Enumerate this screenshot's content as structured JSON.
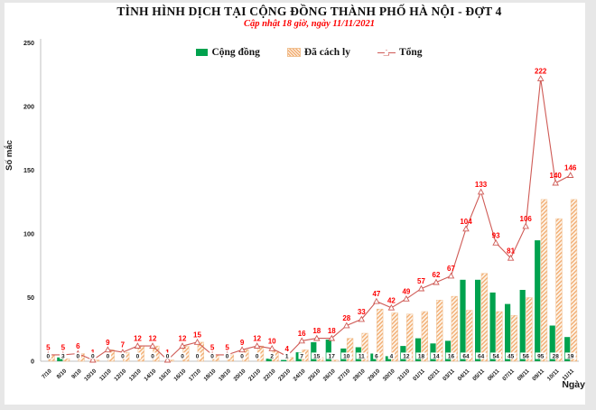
{
  "header": {
    "title": "TÌNH HÌNH DỊCH TẠI CỘNG ĐỒNG THÀNH PHỐ HÀ NỘI - ĐỢT 4",
    "subtitle": "Cập nhật 18 giờ, ngày 11/11/2021"
  },
  "legend": {
    "items": [
      {
        "label": "Cộng đồng",
        "swatch": "green-bar",
        "color": "#00A24E"
      },
      {
        "label": "Đã cách ly",
        "swatch": "orange-hatched-bar",
        "color": "#F2AE74"
      },
      {
        "label": "Tổng",
        "swatch": "red-line-triangle-marker",
        "color": "#CF5B56"
      }
    ]
  },
  "chart_data": {
    "type": "bar",
    "subtype": "clustered bars + line overlay",
    "title": "TÌNH HÌNH DỊCH TẠI CỘNG ĐỒNG THÀNH PHỐ HÀ NỘI - ĐỢT 4",
    "subtitle": "Cập nhật 18 giờ, ngày 11/11/2021",
    "xlabel": "Ngày",
    "ylabel": "Số mắc",
    "ylim": [
      0,
      250
    ],
    "yticks": [
      0,
      50,
      100,
      150,
      200,
      250
    ],
    "grid": false,
    "legend_position": "top",
    "categories": [
      "7/10",
      "8/10",
      "9/10",
      "10/10",
      "11/10",
      "12/10",
      "13/10",
      "14/10",
      "15/10",
      "16/10",
      "17/10",
      "18/10",
      "19/10",
      "20/10",
      "21/10",
      "22/10",
      "23/10",
      "24/10",
      "25/10",
      "26/10",
      "27/10",
      "28/10",
      "29/10",
      "30/10",
      "31/10",
      "01/11",
      "02/11",
      "03/11",
      "04/11",
      "05/11",
      "06/11",
      "07/11",
      "08/11",
      "09/11",
      "10/11",
      "11/11"
    ],
    "series": [
      {
        "name": "Cộng đồng",
        "type": "bar",
        "color": "#00A24E",
        "labels_shown": true,
        "label_color": "#1a1a1a",
        "values": [
          0,
          3,
          0,
          0,
          0,
          0,
          0,
          0,
          0,
          0,
          0,
          0,
          0,
          0,
          0,
          2,
          1,
          7,
          15,
          17,
          10,
          11,
          6,
          4,
          12,
          18,
          14,
          16,
          64,
          64,
          54,
          45,
          56,
          95,
          28,
          19
        ]
      },
      {
        "name": "Đã cách ly",
        "type": "bar-hatched",
        "color": "#F2AE74",
        "hatch_bg": "#FDF4E9",
        "labels_shown": false,
        "values": [
          5,
          2,
          6,
          1,
          9,
          7,
          12,
          12,
          1,
          12,
          15,
          5,
          5,
          9,
          12,
          8,
          3,
          9,
          3,
          1,
          18,
          22,
          41,
          38,
          37,
          39,
          48,
          51,
          40,
          69,
          39,
          36,
          50,
          127,
          112,
          127
        ]
      },
      {
        "name": "Tổng",
        "type": "line",
        "color": "#CF5B56",
        "marker": "open-triangle",
        "labels_shown": true,
        "label_color": "#FD0000",
        "values": [
          5,
          5,
          6,
          1,
          9,
          7,
          12,
          12,
          1,
          12,
          15,
          5,
          5,
          9,
          12,
          10,
          4,
          16,
          18,
          18,
          28,
          33,
          47,
          42,
          49,
          57,
          62,
          67,
          104,
          133,
          93,
          81,
          106,
          222,
          140,
          146
        ]
      }
    ]
  }
}
